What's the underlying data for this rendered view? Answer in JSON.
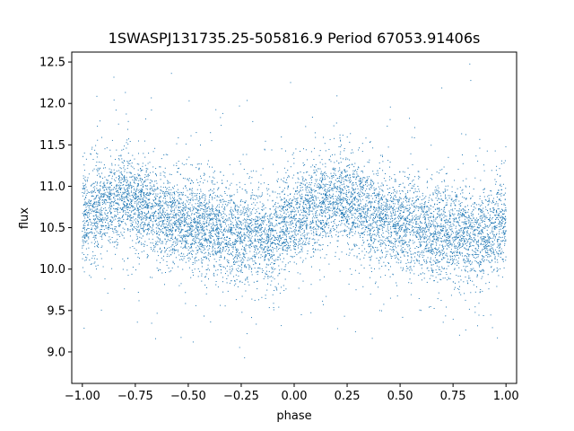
{
  "chart_data": {
    "type": "scatter",
    "title": "1SWASPJ131735.25-505816.9 Period 67053.91406s",
    "xlabel": "phase",
    "ylabel": "flux",
    "xlim": [
      -1.05,
      1.05
    ],
    "ylim": [
      8.62,
      12.62
    ],
    "xticks": [
      -1.0,
      -0.75,
      -0.5,
      -0.25,
      0.0,
      0.25,
      0.5,
      0.75,
      1.0
    ],
    "xtick_labels": [
      "−1.00",
      "−0.75",
      "−0.50",
      "−0.25",
      "0.00",
      "0.25",
      "0.50",
      "0.75",
      "1.00"
    ],
    "yticks": [
      9.0,
      9.5,
      10.0,
      10.5,
      11.0,
      11.5,
      12.0,
      12.5
    ],
    "ytick_labels": [
      "9.0",
      "9.5",
      "10.0",
      "10.5",
      "11.0",
      "11.5",
      "12.0",
      "12.5"
    ],
    "grid": false,
    "marker_color": "#1f77b4",
    "phase_range": [
      -1.0,
      1.0
    ],
    "flux_profile": {
      "phase": [
        0.0,
        0.1,
        0.2,
        0.3,
        0.4,
        0.5,
        0.6,
        0.7,
        0.8,
        0.9
      ],
      "flux": [
        10.6,
        10.78,
        10.85,
        10.75,
        10.62,
        10.55,
        10.5,
        10.45,
        10.42,
        10.38
      ]
    },
    "flux_scatter_sigma": 0.28
  }
}
